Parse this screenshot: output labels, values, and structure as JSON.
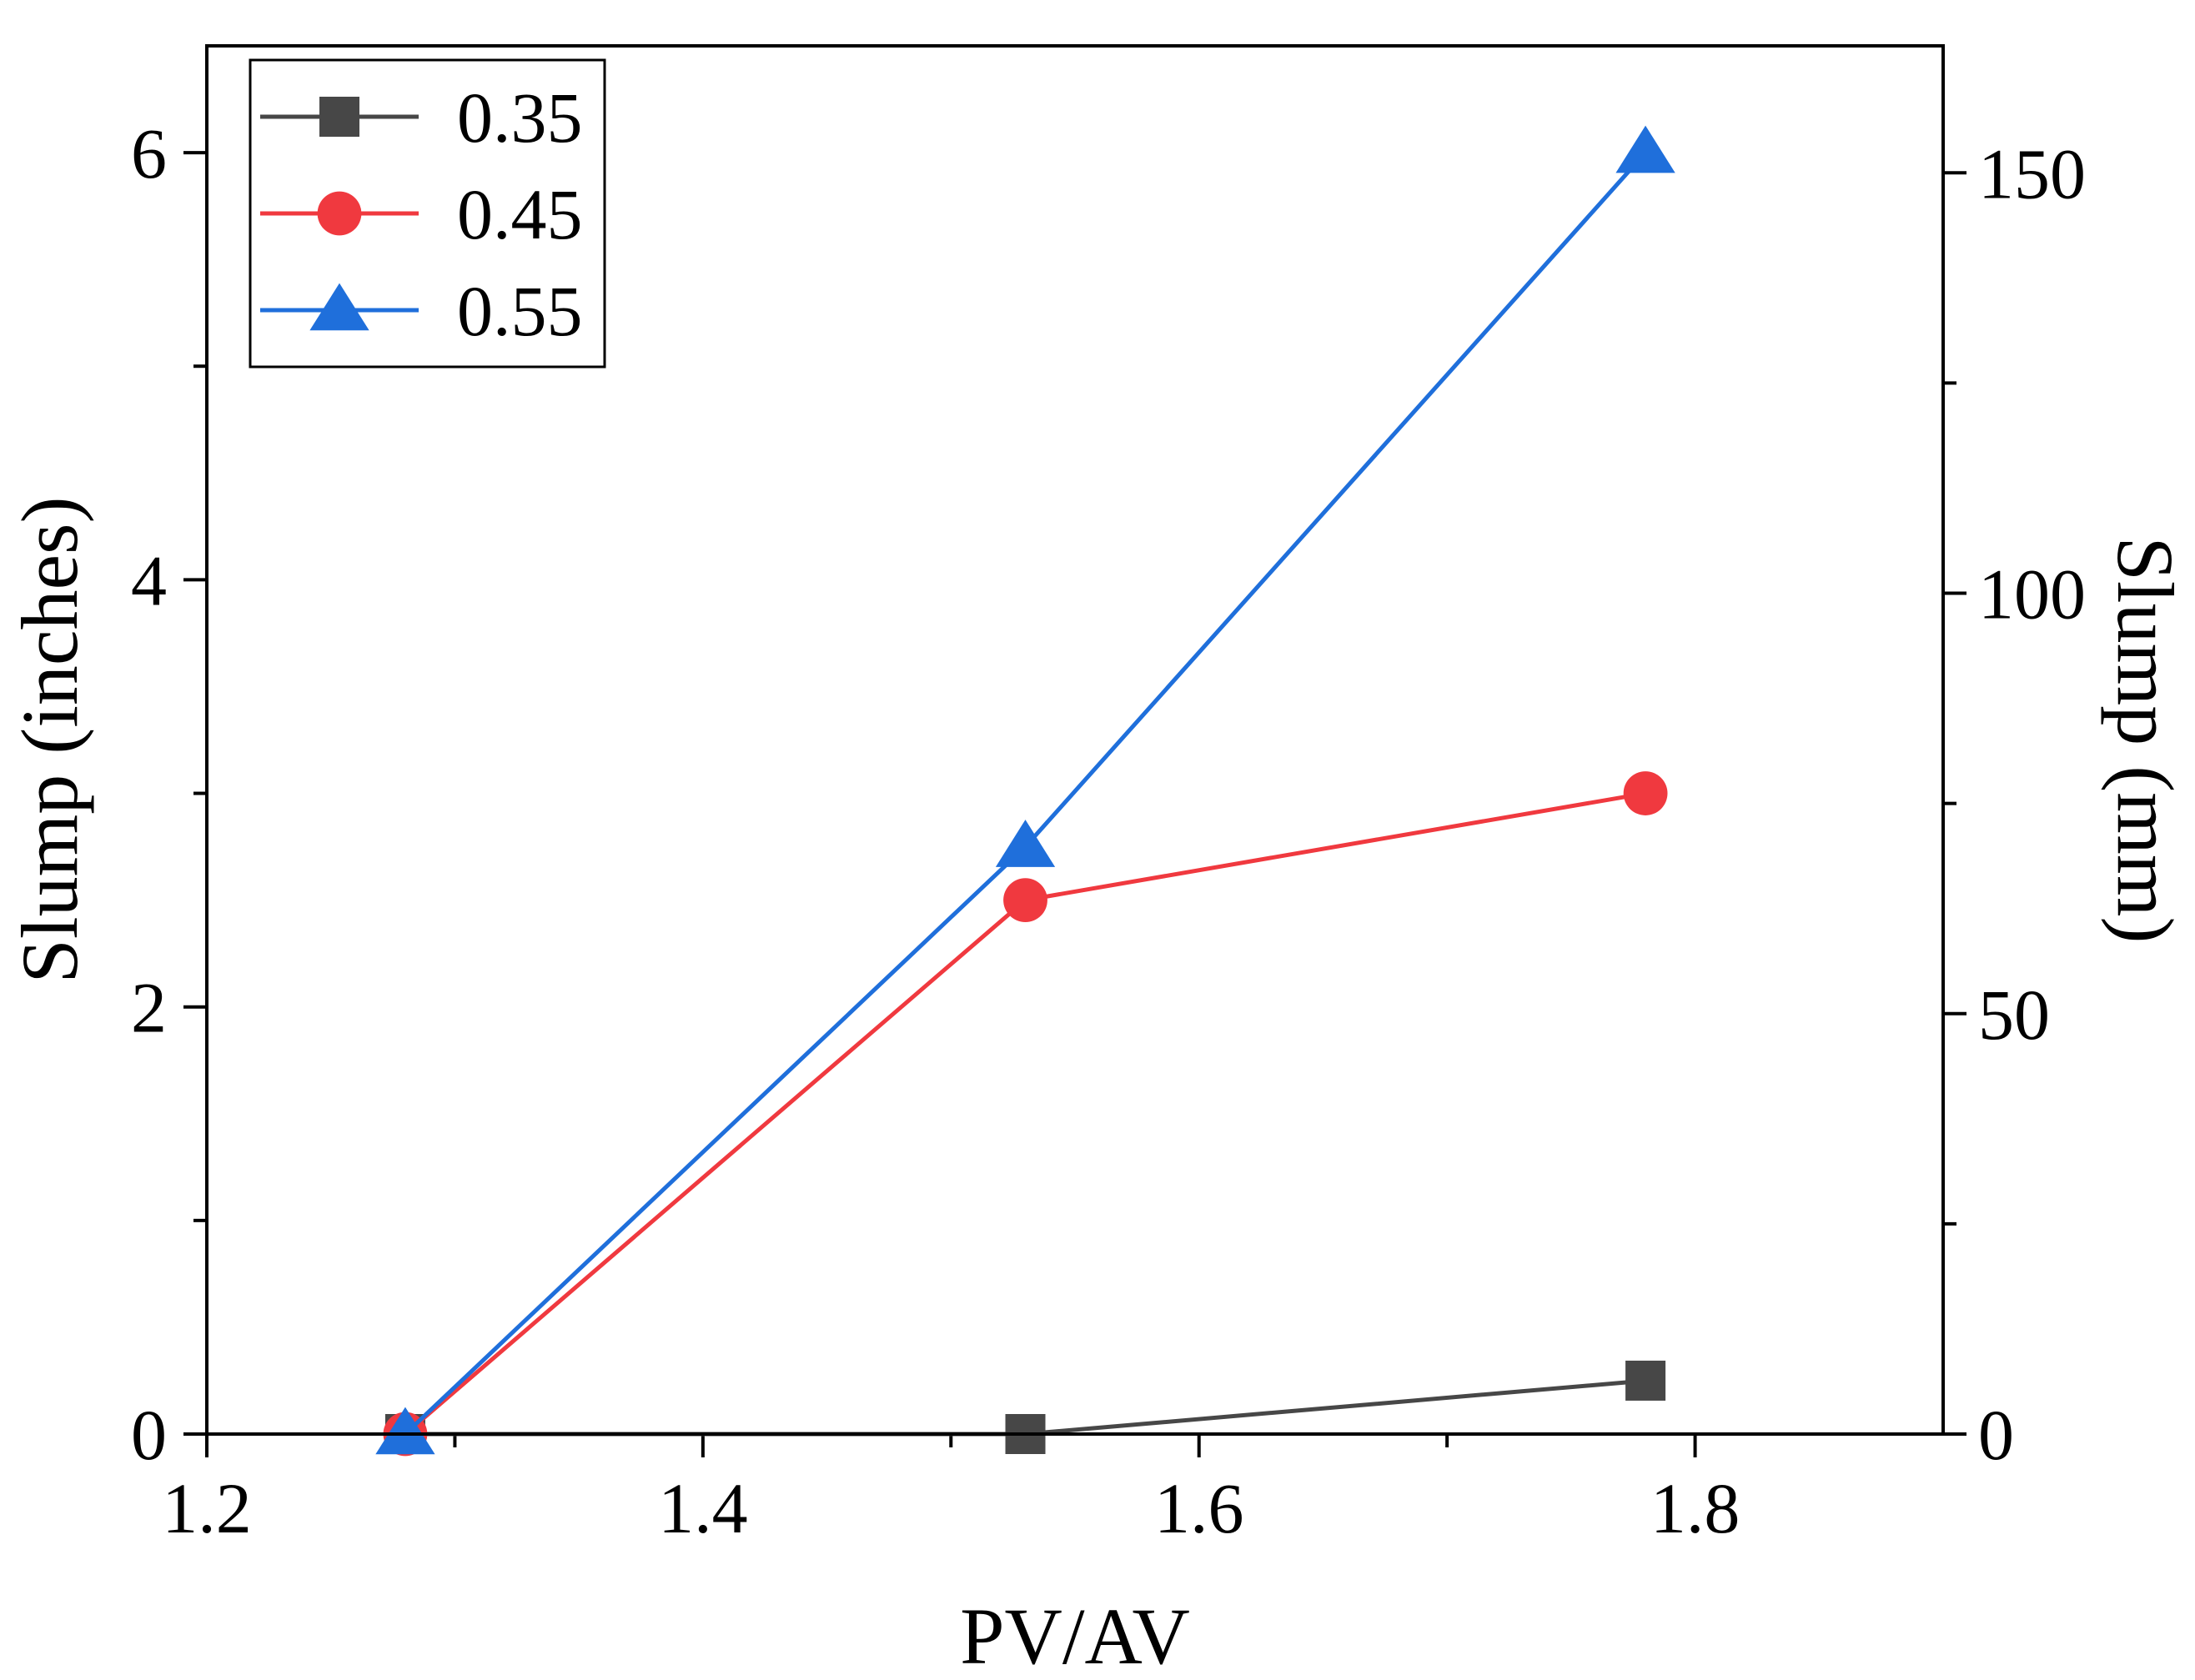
{
  "chart_data": {
    "type": "line",
    "xlabel": "PV/AV",
    "ylabel": "Slump (inches)",
    "y2label": "Slump (mm)",
    "xlim": [
      1.2,
      1.9
    ],
    "ylim": [
      0,
      6.5
    ],
    "y2lim": [
      0,
      165.1
    ],
    "xticks": [
      1.2,
      1.4,
      1.6,
      1.8
    ],
    "xtick_labels": [
      "1.2",
      "1.4",
      "1.6",
      "1.8"
    ],
    "yticks": [
      0,
      2,
      4,
      6
    ],
    "ytick_labels": [
      "0",
      "2",
      "4",
      "6"
    ],
    "y2ticks": [
      0,
      50,
      100,
      150
    ],
    "y2tick_labels": [
      "0",
      "50",
      "100",
      "150"
    ],
    "grid": false,
    "legend_position": "top-left",
    "series": [
      {
        "name": "0.35",
        "color": "#474747",
        "marker": "square",
        "x": [
          1.28,
          1.53,
          1.78
        ],
        "values": [
          0,
          0,
          0.25
        ]
      },
      {
        "name": "0.45",
        "color": "#f0393f",
        "marker": "circle",
        "x": [
          1.28,
          1.53,
          1.78
        ],
        "values": [
          0,
          2.5,
          3.0
        ]
      },
      {
        "name": "0.55",
        "color": "#1f6fdb",
        "marker": "triangle",
        "x": [
          1.28,
          1.53,
          1.78
        ],
        "values": [
          0,
          2.75,
          6.0
        ]
      }
    ]
  }
}
